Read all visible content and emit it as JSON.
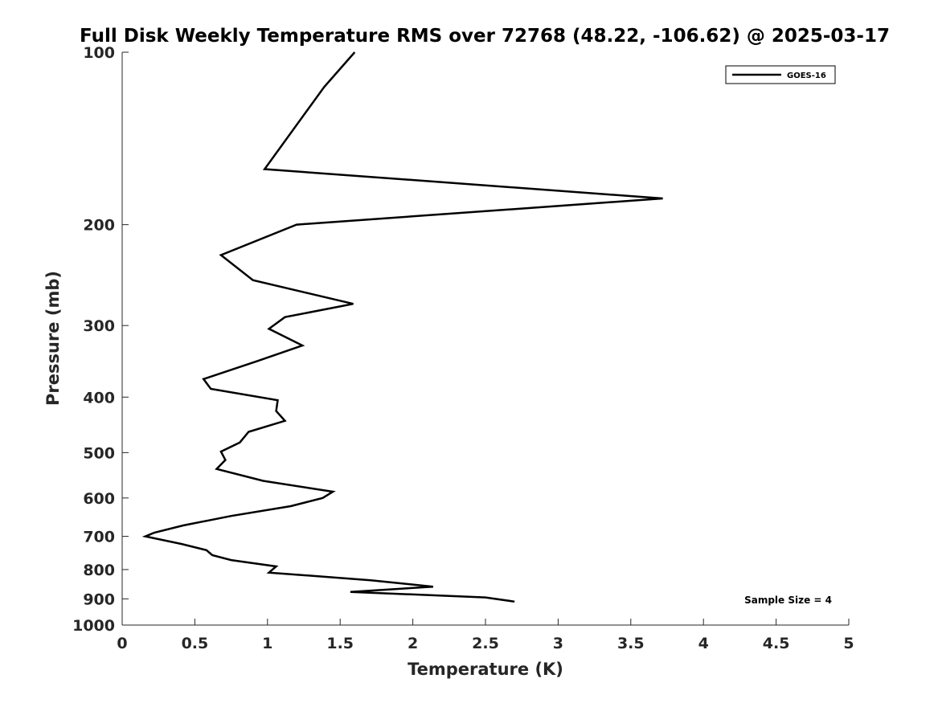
{
  "chart_data": {
    "type": "line",
    "title": "Full Disk Weekly Temperature RMS over 72768 (48.22, -106.62) @ 2025-03-17",
    "xlabel": "Temperature (K)",
    "ylabel": "Pressure (mb)",
    "xlim": [
      0,
      5
    ],
    "ylim": [
      100,
      1000
    ],
    "y_scale": "log",
    "y_reversed": true,
    "x_ticks": [
      "0",
      "0.5",
      "1",
      "1.5",
      "2",
      "2.5",
      "3",
      "3.5",
      "4",
      "4.5",
      "5"
    ],
    "y_ticks": [
      "100",
      "200",
      "300",
      "400",
      "500",
      "600",
      "700",
      "800",
      "900",
      "1000"
    ],
    "grid": false,
    "legend_position": "top-right",
    "annotation": "Sample Size = 4",
    "series": [
      {
        "name": "GOES-16",
        "color": "#000000",
        "x": [
          1.6,
          1.39,
          0.98,
          3.72,
          1.2,
          0.68,
          0.9,
          1.59,
          1.12,
          1.01,
          1.24,
          0.93,
          0.56,
          0.61,
          1.07,
          1.06,
          1.12,
          0.87,
          0.81,
          0.68,
          0.71,
          0.65,
          0.97,
          1.45,
          1.38,
          1.16,
          0.75,
          0.42,
          0.22,
          0.16,
          0.41,
          0.58,
          0.62,
          0.75,
          1.06,
          1.01,
          1.71,
          2.14,
          1.57,
          2.5,
          2.7
        ],
        "y": [
          100,
          115,
          160,
          180,
          200,
          226,
          250,
          275,
          290,
          304,
          325,
          346,
          372,
          387,
          405,
          423,
          440,
          460,
          480,
          498,
          515,
          534,
          560,
          585,
          600,
          620,
          645,
          670,
          690,
          700,
          722,
          740,
          755,
          770,
          790,
          810,
          835,
          857,
          875,
          895,
          910
        ]
      }
    ]
  }
}
